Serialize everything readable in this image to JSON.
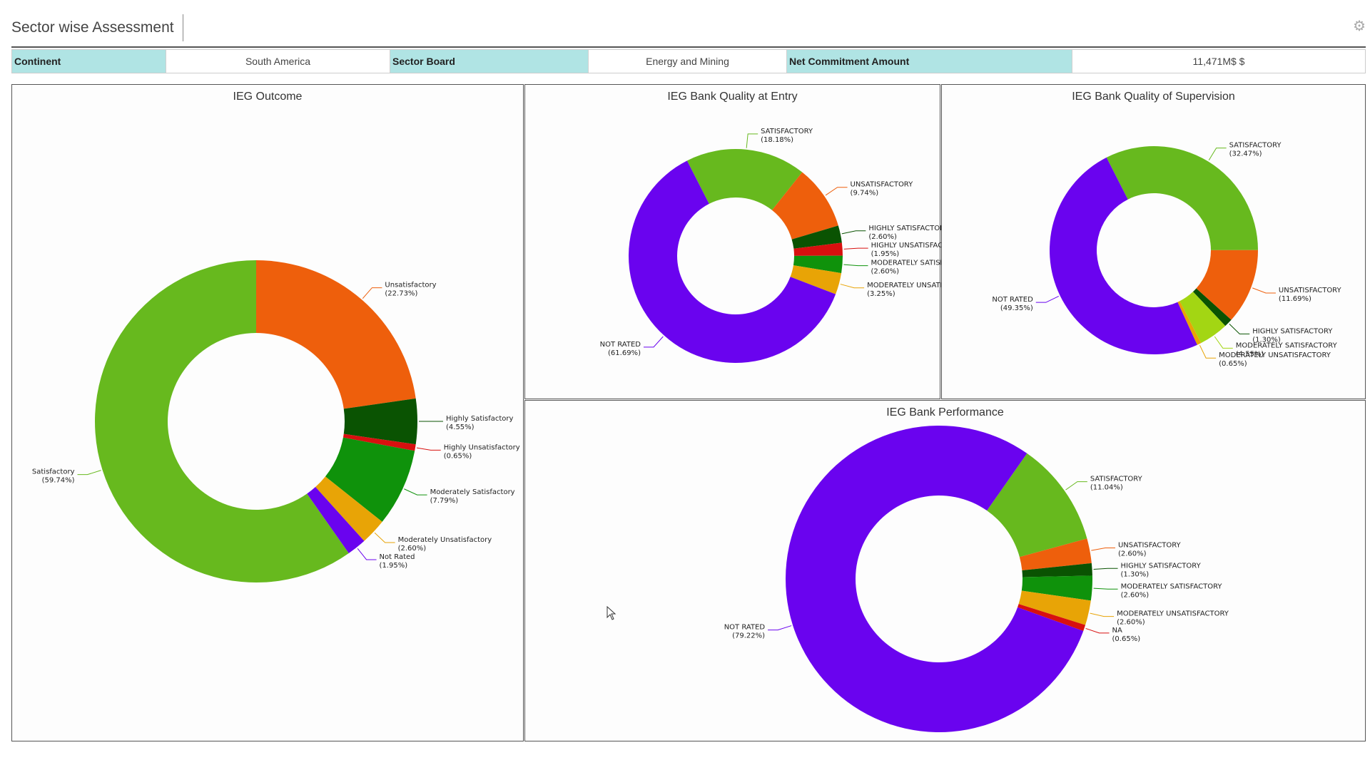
{
  "header": {
    "title": "Sector wise Assessment",
    "settings_icon": "settings-icon"
  },
  "info": {
    "continent_label": "Continent",
    "continent_value": "South America",
    "sector_label": "Sector Board",
    "sector_value": "Energy and Mining",
    "amount_label": "Net Commitment Amount",
    "amount_value": "11,471M$ $"
  },
  "colors": {
    "label_bg": "#b0e4e4"
  },
  "chart_data": [
    {
      "id": "outcome",
      "type": "pie",
      "title": "IEG Outcome",
      "slices": [
        {
          "label": "Unsatisfactory",
          "pct": "(22.73%)",
          "value": 22.73,
          "color": "#ee5f0c"
        },
        {
          "label": "Highly Satisfactory",
          "pct": "(4.55%)",
          "value": 4.55,
          "color": "#0a5302"
        },
        {
          "label": "Highly Unsatisfactory",
          "pct": "(0.65%)",
          "value": 0.65,
          "color": "#d8100f"
        },
        {
          "label": "Moderately Satisfactory",
          "pct": "(7.79%)",
          "value": 7.79,
          "color": "#0f920b"
        },
        {
          "label": "Moderately Unsatisfactory",
          "pct": "(2.60%)",
          "value": 2.6,
          "color": "#e8a406"
        },
        {
          "label": "Not Rated",
          "pct": "(1.95%)",
          "value": 1.95,
          "color": "#6a03ef"
        },
        {
          "label": "Satisfactory",
          "pct": "(59.74%)",
          "value": 59.74,
          "color": "#67b91e"
        }
      ]
    },
    {
      "id": "entry",
      "type": "pie",
      "title": "IEG Bank Quality at Entry",
      "slices": [
        {
          "label": "SATISFACTORY",
          "pct": "(18.18%)",
          "value": 18.18,
          "color": "#67b91e"
        },
        {
          "label": "UNSATISFACTORY",
          "pct": "(9.74%)",
          "value": 9.74,
          "color": "#ee5f0c"
        },
        {
          "label": "HIGHLY SATISFACTORY",
          "pct": "(2.60%)",
          "value": 2.6,
          "color": "#0a5302"
        },
        {
          "label": "HIGHLY UNSATISFACTORY",
          "pct": "(1.95%)",
          "value": 1.95,
          "color": "#d8100f"
        },
        {
          "label": "MODERATELY SATISFACTORY",
          "pct": "(2.60%)",
          "value": 2.6,
          "color": "#0f920b"
        },
        {
          "label": "MODERATELY UNSATISFACTORY",
          "pct": "(3.25%)",
          "value": 3.25,
          "color": "#e8a406"
        },
        {
          "label": "NOT RATED",
          "pct": "(61.69%)",
          "value": 61.69,
          "color": "#6a03ef"
        }
      ]
    },
    {
      "id": "supervision",
      "type": "pie",
      "title": "IEG Bank Quality of Supervision",
      "slices": [
        {
          "label": "SATISFACTORY",
          "pct": "(32.47%)",
          "value": 32.47,
          "color": "#67b91e"
        },
        {
          "label": "UNSATISFACTORY",
          "pct": "(11.69%)",
          "value": 11.69,
          "color": "#ee5f0c"
        },
        {
          "label": "HIGHLY SATISFACTORY",
          "pct": "(1.30%)",
          "value": 1.3,
          "color": "#0a5302"
        },
        {
          "label": "MODERATELY SATISFACTORY",
          "pct": "(4.55%)",
          "value": 4.55,
          "color": "#a3d613"
        },
        {
          "label": "MODERATELY UNSATISFACTORY",
          "pct": "(0.65%)",
          "value": 0.65,
          "color": "#e8a406"
        },
        {
          "label": "NOT RATED",
          "pct": "(49.35%)",
          "value": 49.35,
          "color": "#6a03ef"
        }
      ]
    },
    {
      "id": "performance",
      "type": "pie",
      "title": "IEG Bank Performance",
      "slices": [
        {
          "label": "SATISFACTORY",
          "pct": "(11.04%)",
          "value": 11.04,
          "color": "#67b91e"
        },
        {
          "label": "UNSATISFACTORY",
          "pct": "(2.60%)",
          "value": 2.6,
          "color": "#ee5f0c"
        },
        {
          "label": "HIGHLY SATISFACTORY",
          "pct": "(1.30%)",
          "value": 1.3,
          "color": "#0a5302"
        },
        {
          "label": "MODERATELY SATISFACTORY",
          "pct": "(2.60%)",
          "value": 2.6,
          "color": "#0f920b"
        },
        {
          "label": "MODERATELY UNSATISFACTORY",
          "pct": "(2.60%)",
          "value": 2.6,
          "color": "#e8a406"
        },
        {
          "label": "NA",
          "pct": "(0.65%)",
          "value": 0.65,
          "color": "#d8100f"
        },
        {
          "label": "NOT RATED",
          "pct": "(79.22%)",
          "value": 79.22,
          "color": "#6a03ef"
        }
      ]
    }
  ]
}
